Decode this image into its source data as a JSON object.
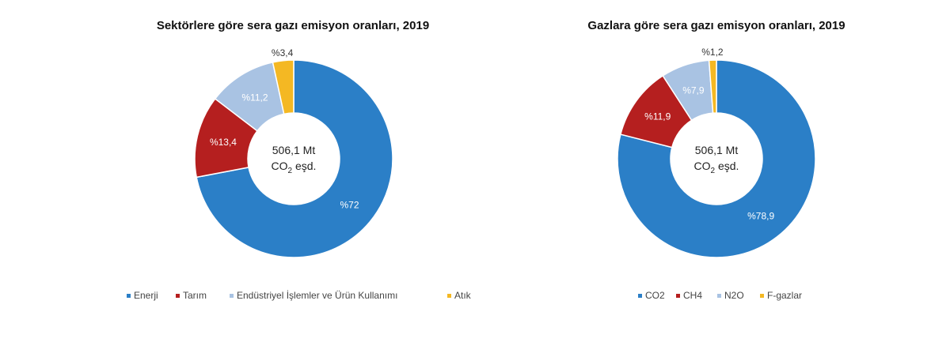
{
  "chart_data": [
    {
      "type": "pie",
      "title": "Sektörlere göre sera gazı emisyon oranları, 2019",
      "center_label": [
        "506,1 Mt",
        "CO",
        "2",
        " eşd."
      ],
      "categories": [
        "Enerji",
        "Tarım",
        "Endüstriyel İşlemler ve Ürün Kullanımı",
        "Atık"
      ],
      "values": [
        72,
        13.4,
        11.2,
        3.4
      ],
      "labels": [
        "%72",
        "%13,4",
        "%11,2",
        "%3,4"
      ],
      "colors": [
        "#2b7fc7",
        "#b51f1f",
        "#a9c3e3",
        "#f4b823"
      ],
      "legend": "bottom"
    },
    {
      "type": "pie",
      "title": "Gazlara göre sera gazı emisyon oranları, 2019",
      "center_label": [
        "506,1 Mt",
        "CO",
        "2",
        " eşd."
      ],
      "categories": [
        "CO2",
        "CH4",
        "N2O",
        "F-gazlar"
      ],
      "values": [
        78.9,
        11.9,
        7.9,
        1.2
      ],
      "labels": [
        "%78,9",
        "%11,9",
        "%7,9",
        "%1,2"
      ],
      "colors": [
        "#2b7fc7",
        "#b51f1f",
        "#a9c3e3",
        "#f4b823"
      ],
      "legend": "bottom"
    }
  ]
}
